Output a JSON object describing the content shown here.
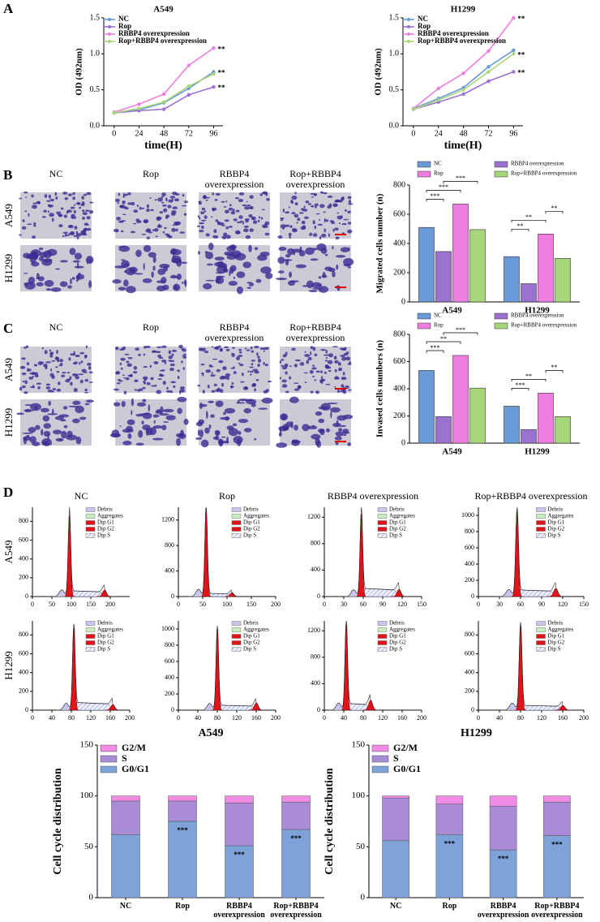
{
  "panels": [
    "A",
    "B",
    "C",
    "D"
  ],
  "micrographs": {
    "columns": [
      "NC",
      "Rop",
      "RBBP4 overexpression",
      "Rop+RBBP4 overexpression"
    ],
    "rows": [
      "A549",
      "H1299"
    ]
  },
  "flow": {
    "columns": [
      "NC",
      "Rop",
      "RBBP4 overexpression",
      "Rop+RBBP4  overexpression"
    ],
    "rows": [
      "A549",
      "H1299"
    ],
    "legend": [
      "Debris",
      "Aggregates",
      "Dip G1",
      "Dip G2",
      "Dip S"
    ]
  },
  "chart_data": [
    {
      "type": "line",
      "title": "A549",
      "xlabel": "time(H)",
      "ylabel": "OD (492nm)",
      "x": [
        0,
        24,
        48,
        72,
        96
      ],
      "xlim": [
        -10,
        105
      ],
      "xticks": [
        0,
        24,
        48,
        72,
        96
      ],
      "ylim": [
        0,
        1.5
      ],
      "yticks": [
        {
          "value": 0,
          "label": "0.0"
        },
        0.5,
        {
          "value": 1,
          "label": "1.0"
        },
        1.5
      ],
      "series": [
        {
          "name": "NC",
          "color": "#6a9bd8",
          "values": [
            0.18,
            0.22,
            0.32,
            0.52,
            0.75
          ],
          "end_label": "**"
        },
        {
          "name": "Rop",
          "color": "#9b72cf",
          "values": [
            0.18,
            0.21,
            0.23,
            0.43,
            0.54
          ],
          "end_label": "**"
        },
        {
          "name": "RBBP4 overexpression",
          "color": "#ee7ee0",
          "values": [
            0.19,
            0.3,
            0.44,
            0.84,
            1.08
          ],
          "end_label": "**"
        },
        {
          "name": "Rop+RBBP4 overexpression",
          "color": "#a8d67a",
          "values": [
            0.18,
            0.24,
            0.33,
            0.55,
            0.72
          ]
        }
      ]
    },
    {
      "type": "line",
      "title": "H1299",
      "xlabel": "time(H)",
      "ylabel": "OD (492nm)",
      "x": [
        0,
        24,
        48,
        72,
        96
      ],
      "xlim": [
        -10,
        105
      ],
      "xticks": [
        0,
        24,
        48,
        72,
        96
      ],
      "ylim": [
        0,
        1.5
      ],
      "yticks": [
        {
          "value": 0,
          "label": "0.0"
        },
        0.5,
        {
          "value": 1,
          "label": "1.0"
        },
        1.5
      ],
      "series": [
        {
          "name": "NC",
          "color": "#6a9bd8",
          "values": [
            0.24,
            0.38,
            0.53,
            0.82,
            1.05
          ]
        },
        {
          "name": "Rop",
          "color": "#9b72cf",
          "values": [
            0.23,
            0.33,
            0.44,
            0.62,
            0.75
          ],
          "end_label": "**"
        },
        {
          "name": "RBBP4 overexpression",
          "color": "#ee7ee0",
          "values": [
            0.24,
            0.52,
            0.73,
            1.04,
            1.5
          ],
          "end_label": "**"
        },
        {
          "name": "Rop+RBBP4 overexpression",
          "color": "#a8d67a",
          "values": [
            0.23,
            0.36,
            0.5,
            0.75,
            1.0
          ],
          "end_label": "**"
        }
      ]
    },
    {
      "type": "bar",
      "ylabel": "Migrated cells number (n)",
      "categories": [
        "A549",
        "H1299"
      ],
      "ylim": [
        0,
        800
      ],
      "yticks": [
        0,
        200,
        400,
        600,
        800
      ],
      "series": [
        {
          "name": "NC",
          "color": "#6a9bd8",
          "values": [
            510,
            310
          ]
        },
        {
          "name": "RBBP4 overexpression",
          "color": "#9b72cf",
          "values": [
            345,
            125
          ]
        },
        {
          "name": "Rop",
          "color": "#ee7ee0",
          "values": [
            670,
            465
          ]
        },
        {
          "name": "Rop+RBBP4 overexpression",
          "color": "#a8d67a",
          "values": [
            495,
            298
          ]
        }
      ],
      "brackets": [
        {
          "category": 0,
          "from": 0,
          "to": 1,
          "label": "***"
        },
        {
          "category": 0,
          "from": 0,
          "to": 2,
          "label": "***"
        },
        {
          "category": 0,
          "from": 1,
          "to": 3,
          "label": "***"
        },
        {
          "category": 1,
          "from": 0,
          "to": 1,
          "label": "**"
        },
        {
          "category": 1,
          "from": 0,
          "to": 2,
          "label": "**"
        },
        {
          "category": 1,
          "from": 2,
          "to": 3,
          "label": "**"
        }
      ]
    },
    {
      "type": "bar",
      "ylabel": "Invased cells numbers (n)",
      "categories": [
        "A549",
        "H1299"
      ],
      "ylim": [
        0,
        800
      ],
      "yticks": [
        0,
        200,
        400,
        600,
        800
      ],
      "series": [
        {
          "name": "NC",
          "color": "#6a9bd8",
          "values": [
            535,
            272
          ]
        },
        {
          "name": "RBBP4 overexpression",
          "color": "#9b72cf",
          "values": [
            195,
            100
          ]
        },
        {
          "name": "Rop",
          "color": "#ee7ee0",
          "values": [
            645,
            368
          ]
        },
        {
          "name": "Rop+RBBP4 overexpression",
          "color": "#a8d67a",
          "values": [
            405,
            195
          ]
        }
      ],
      "brackets": [
        {
          "category": 0,
          "from": 0,
          "to": 1,
          "label": "***"
        },
        {
          "category": 0,
          "from": 0,
          "to": 2,
          "label": "**"
        },
        {
          "category": 0,
          "from": 1,
          "to": 3,
          "label": "***"
        },
        {
          "category": 1,
          "from": 0,
          "to": 1,
          "label": "***"
        },
        {
          "category": 1,
          "from": 0,
          "to": 2,
          "label": "**"
        },
        {
          "category": 1,
          "from": 2,
          "to": 3,
          "label": "**"
        }
      ]
    },
    {
      "type": "flow",
      "xlim": [
        0,
        250
      ],
      "xticks": [
        0,
        50,
        100,
        150,
        200
      ],
      "ylim": [
        0,
        950
      ],
      "yticks": [
        0,
        200,
        400,
        600,
        800
      ],
      "g1": {
        "x": 95,
        "height": 860
      },
      "g2": {
        "x": 185,
        "height": 70
      },
      "s": 60
    },
    {
      "type": "flow",
      "xlim": [
        0,
        200
      ],
      "xticks": [
        0,
        50,
        100,
        150,
        200
      ],
      "ylim": [
        0,
        1400
      ],
      "yticks": [
        0,
        400,
        800,
        1200
      ],
      "g1": {
        "x": 57,
        "height": 1380
      },
      "g2": {
        "x": 110,
        "height": 60
      },
      "s": 50
    },
    {
      "type": "flow",
      "xlim": [
        0,
        150
      ],
      "xticks": [
        0,
        30,
        60,
        90,
        120,
        150
      ],
      "ylim": [
        0,
        1350
      ],
      "yticks": [
        0,
        400,
        800,
        1200
      ],
      "g1": {
        "x": 57,
        "height": 1250
      },
      "g2": {
        "x": 115,
        "height": 110
      },
      "s": 120
    },
    {
      "type": "flow",
      "xlim": [
        0,
        150
      ],
      "xticks": [
        0,
        30,
        60,
        90,
        120,
        150
      ],
      "ylim": [
        0,
        1100
      ],
      "yticks": [
        0,
        200,
        400,
        600,
        800,
        1000
      ],
      "g1": {
        "x": 55,
        "height": 1050
      },
      "g2": {
        "x": 110,
        "height": 100
      },
      "s": 80
    },
    {
      "type": "flow",
      "xlim": [
        0,
        200
      ],
      "xticks": [
        0,
        40,
        80,
        120,
        160,
        200
      ],
      "ylim": [
        0,
        950
      ],
      "yticks": [
        0,
        200,
        400,
        600,
        800
      ],
      "g1": {
        "x": 85,
        "height": 880
      },
      "g2": {
        "x": 165,
        "height": 60
      },
      "s": 80
    },
    {
      "type": "flow",
      "xlim": [
        0,
        200
      ],
      "xticks": [
        0,
        40,
        80,
        120,
        160,
        200
      ],
      "ylim": [
        0,
        1100
      ],
      "yticks": [
        0,
        200,
        400,
        600,
        800,
        1000
      ],
      "g1": {
        "x": 80,
        "height": 1000
      },
      "g2": {
        "x": 160,
        "height": 90
      },
      "s": 60
    },
    {
      "type": "flow",
      "xlim": [
        0,
        200
      ],
      "xticks": [
        0,
        40,
        80,
        120,
        160,
        200
      ],
      "ylim": [
        0,
        1350
      ],
      "yticks": [
        0,
        400,
        800,
        1200
      ],
      "g1": {
        "x": 45,
        "height": 1300
      },
      "g2": {
        "x": 95,
        "height": 150
      },
      "s": 100
    },
    {
      "type": "flow",
      "xlim": [
        0,
        200
      ],
      "xticks": [
        0,
        40,
        80,
        120,
        160,
        200
      ],
      "ylim": [
        0,
        950
      ],
      "yticks": [
        0,
        200,
        400,
        600,
        800
      ],
      "g1": {
        "x": 80,
        "height": 900
      },
      "g2": {
        "x": 160,
        "height": 50
      },
      "s": 50
    },
    {
      "type": "stacked",
      "title": "A549",
      "ylabel": "Cell cycle distribution",
      "categories": [
        "NC",
        "Rop",
        "RBBP4 overexpression",
        "Rop+RBBP4 overexpression"
      ],
      "ylim": [
        0,
        150
      ],
      "yticks": [
        0,
        50,
        100,
        150
      ],
      "series": [
        {
          "name": "G0/G1",
          "color": "#7ea3d8",
          "values": [
            62,
            75,
            51,
            67
          ],
          "sig": [
            null,
            "***",
            "***",
            "***"
          ]
        },
        {
          "name": "S",
          "color": "#a98bd6",
          "values": [
            33,
            20,
            42,
            27
          ]
        },
        {
          "name": "G2/M",
          "color": "#f08ce6",
          "values": [
            5,
            5,
            7,
            6
          ]
        }
      ]
    },
    {
      "type": "stacked",
      "title": "H1299",
      "ylabel": "Cell cycle distribution",
      "categories": [
        "NC",
        "Rop",
        "RBBP4 overexpression",
        "Rop+RBBP4 overexpression"
      ],
      "ylim": [
        0,
        150
      ],
      "yticks": [
        0,
        50,
        100,
        150
      ],
      "series": [
        {
          "name": "G0/G1",
          "color": "#7ea3d8",
          "values": [
            56,
            62,
            47,
            61
          ],
          "sig": [
            null,
            "***",
            "***",
            "***"
          ]
        },
        {
          "name": "S",
          "color": "#a98bd6",
          "values": [
            42,
            30,
            43,
            33
          ]
        },
        {
          "name": "G2/M",
          "color": "#f08ce6",
          "values": [
            2,
            8,
            10,
            6
          ]
        }
      ]
    }
  ]
}
